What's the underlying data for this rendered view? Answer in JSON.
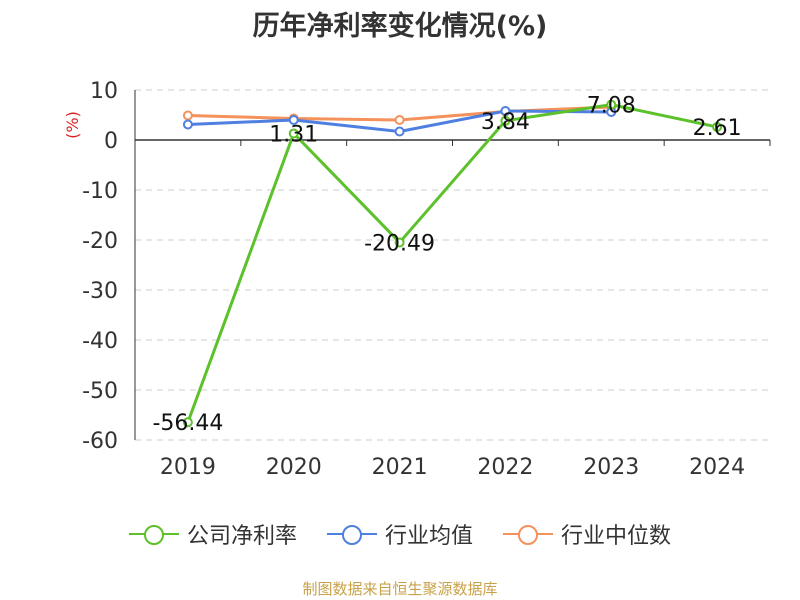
{
  "chart_data": {
    "type": "line",
    "title": "历年净利率变化情况(%)",
    "ylabel": "(%)",
    "categories": [
      "2019",
      "2020",
      "2021",
      "2022",
      "2023",
      "2024"
    ],
    "ylim": [
      -60,
      10
    ],
    "yticks": [
      10,
      0,
      -10,
      -20,
      -30,
      -40,
      -50,
      -60
    ],
    "grid": true,
    "legend_position": "bottom",
    "series": [
      {
        "name": "公司净利率",
        "color": "#5cc12a",
        "values": [
          -56.44,
          1.31,
          -20.49,
          3.84,
          7.08,
          2.61
        ],
        "labels": [
          "-56.44",
          "1.31",
          "-20.49",
          "3.84",
          "7.08",
          "2.61"
        ]
      },
      {
        "name": "行业均值",
        "color": "#4f7fe0",
        "values": [
          3.1,
          4.0,
          1.7,
          5.8,
          5.6,
          null
        ]
      },
      {
        "name": "行业中位数",
        "color": "#f5915a",
        "values": [
          4.9,
          4.3,
          4.0,
          5.7,
          6.6,
          null
        ]
      }
    ]
  },
  "source": "制图数据来自恒生聚源数据库"
}
